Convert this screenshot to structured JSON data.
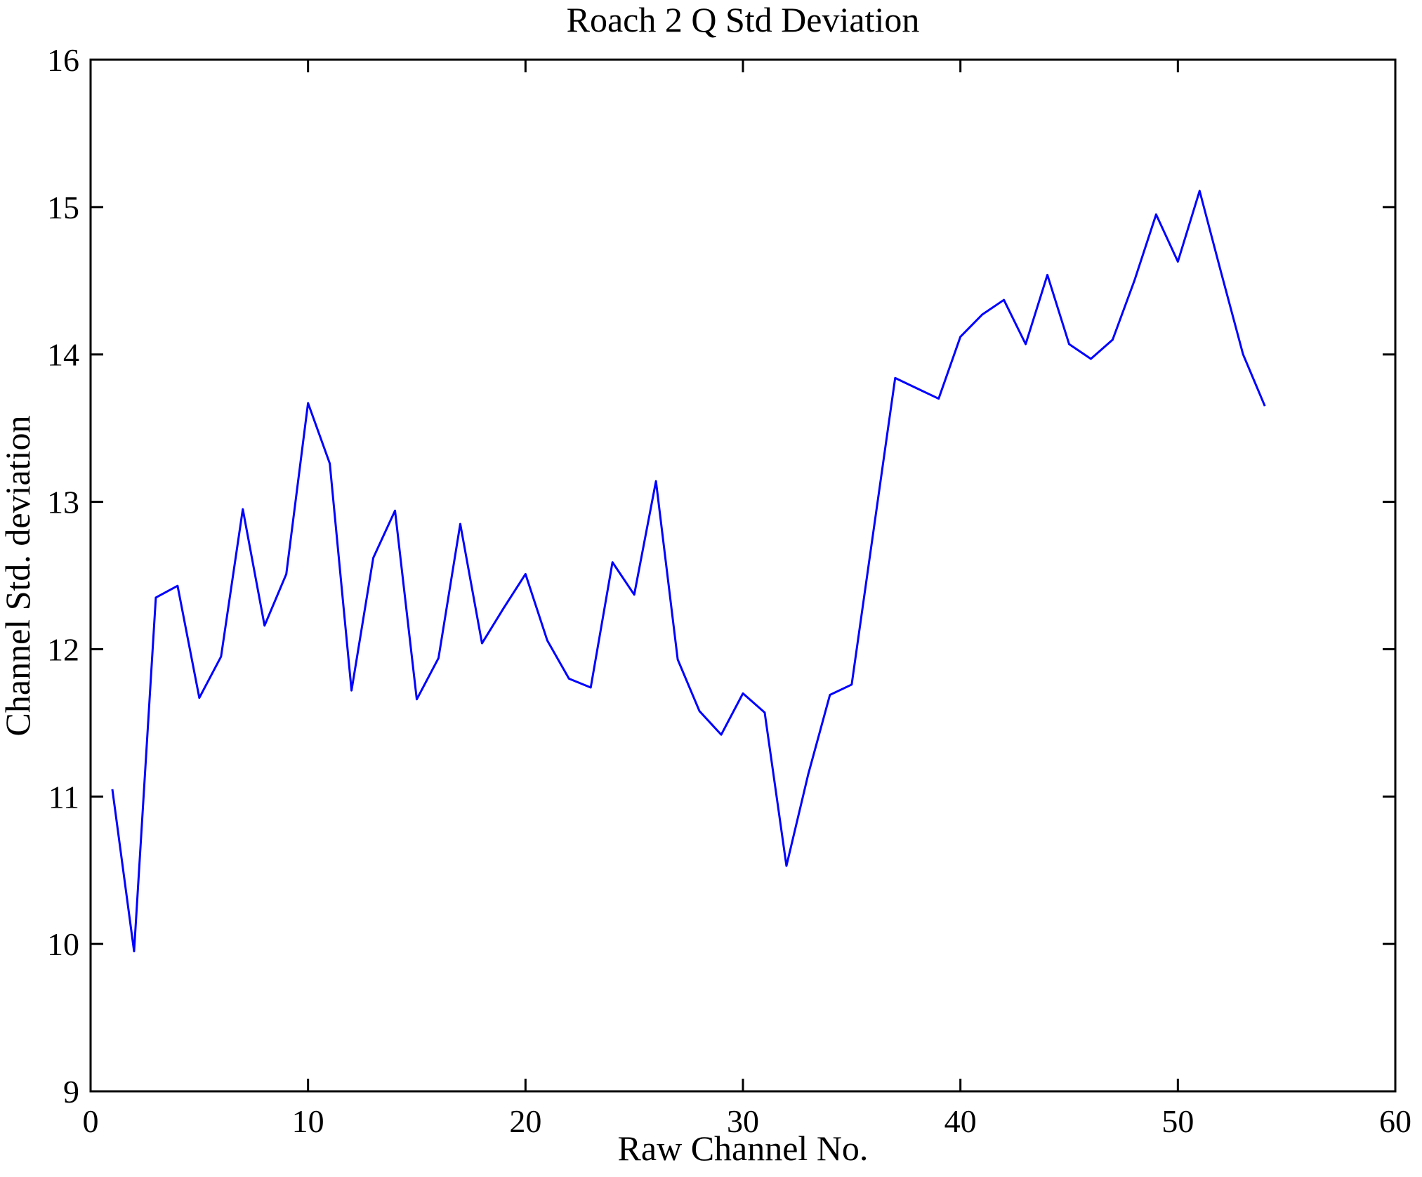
{
  "figure": {
    "background": "#ffffff",
    "axis_color": "#000000"
  },
  "chart_data": {
    "type": "line",
    "title": "Roach 2 Q Std Deviation",
    "xlabel": "Raw Channel No.",
    "ylabel": "Channel Std. deviation",
    "xlim": [
      0,
      60
    ],
    "ylim": [
      9,
      16
    ],
    "x_ticks": [
      0,
      10,
      20,
      30,
      40,
      50,
      60
    ],
    "y_ticks": [
      9,
      10,
      11,
      12,
      13,
      14,
      15,
      16
    ],
    "grid": false,
    "legend_position": "none",
    "line_color": "#0000ff",
    "series": [
      {
        "name": "Channel Std deviation",
        "x": [
          1,
          2,
          3,
          4,
          5,
          6,
          7,
          8,
          9,
          10,
          11,
          12,
          13,
          14,
          15,
          16,
          17,
          18,
          19,
          20,
          21,
          22,
          23,
          24,
          25,
          26,
          27,
          28,
          29,
          30,
          31,
          32,
          33,
          34,
          35,
          36,
          37,
          38,
          39,
          40,
          41,
          42,
          43,
          44,
          45,
          46,
          47,
          48,
          49,
          50,
          51,
          52,
          53,
          54
        ],
        "values": [
          11.05,
          9.95,
          12.35,
          12.43,
          11.67,
          11.95,
          12.95,
          12.16,
          12.51,
          13.67,
          13.26,
          11.72,
          12.62,
          12.94,
          11.66,
          11.94,
          12.85,
          12.04,
          12.28,
          12.51,
          12.06,
          11.8,
          11.74,
          12.59,
          12.37,
          13.14,
          11.93,
          11.58,
          11.42,
          11.7,
          11.57,
          10.53,
          11.15,
          11.69,
          11.76,
          12.8,
          13.84,
          13.77,
          13.7,
          14.12,
          14.27,
          14.37,
          14.07,
          14.54,
          14.07,
          13.97,
          14.1,
          14.5,
          14.95,
          14.63,
          15.11,
          14.55,
          14.0,
          13.65
        ]
      }
    ]
  }
}
